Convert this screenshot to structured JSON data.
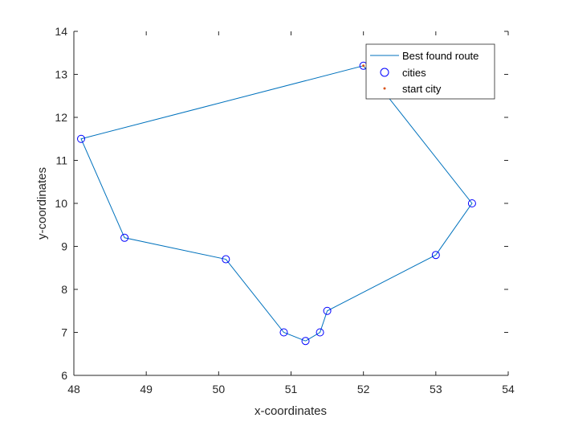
{
  "chart_data": {
    "type": "line",
    "title": "",
    "xlabel": "x-coordinates",
    "ylabel": "y-coordinates",
    "xlim": [
      48,
      54
    ],
    "ylim": [
      6,
      14
    ],
    "xticks": [
      "48",
      "49",
      "50",
      "51",
      "52",
      "53",
      "54"
    ],
    "yticks": [
      "6",
      "7",
      "8",
      "9",
      "10",
      "11",
      "12",
      "13",
      "14"
    ],
    "grid": false,
    "legend_position": "top-right",
    "legend": [
      "Best found route",
      "cities",
      "start city"
    ],
    "series": [
      {
        "name": "Best found route",
        "style": "line",
        "color": "#0072BD",
        "points": [
          {
            "x": 51.2,
            "y": 6.8
          },
          {
            "x": 51.4,
            "y": 7.0
          },
          {
            "x": 51.5,
            "y": 7.5
          },
          {
            "x": 53.0,
            "y": 8.8
          },
          {
            "x": 53.5,
            "y": 10.0
          },
          {
            "x": 52.0,
            "y": 13.2
          },
          {
            "x": 48.1,
            "y": 11.5
          },
          {
            "x": 48.7,
            "y": 9.2
          },
          {
            "x": 50.1,
            "y": 8.7
          },
          {
            "x": 50.9,
            "y": 7.0
          },
          {
            "x": 51.2,
            "y": 6.8
          }
        ]
      },
      {
        "name": "cities",
        "style": "circle-marker",
        "color": "#0000FF",
        "points": [
          {
            "x": 51.2,
            "y": 6.8
          },
          {
            "x": 51.4,
            "y": 7.0
          },
          {
            "x": 51.5,
            "y": 7.5
          },
          {
            "x": 53.0,
            "y": 8.8
          },
          {
            "x": 53.5,
            "y": 10.0
          },
          {
            "x": 52.0,
            "y": 13.2
          },
          {
            "x": 48.1,
            "y": 11.5
          },
          {
            "x": 48.7,
            "y": 9.2
          },
          {
            "x": 50.1,
            "y": 8.7
          },
          {
            "x": 50.9,
            "y": 7.0
          }
        ]
      },
      {
        "name": "start city",
        "style": "dot-marker",
        "color": "#D95319",
        "points": [
          {
            "x": 52.0,
            "y": 13.2
          }
        ]
      }
    ]
  }
}
